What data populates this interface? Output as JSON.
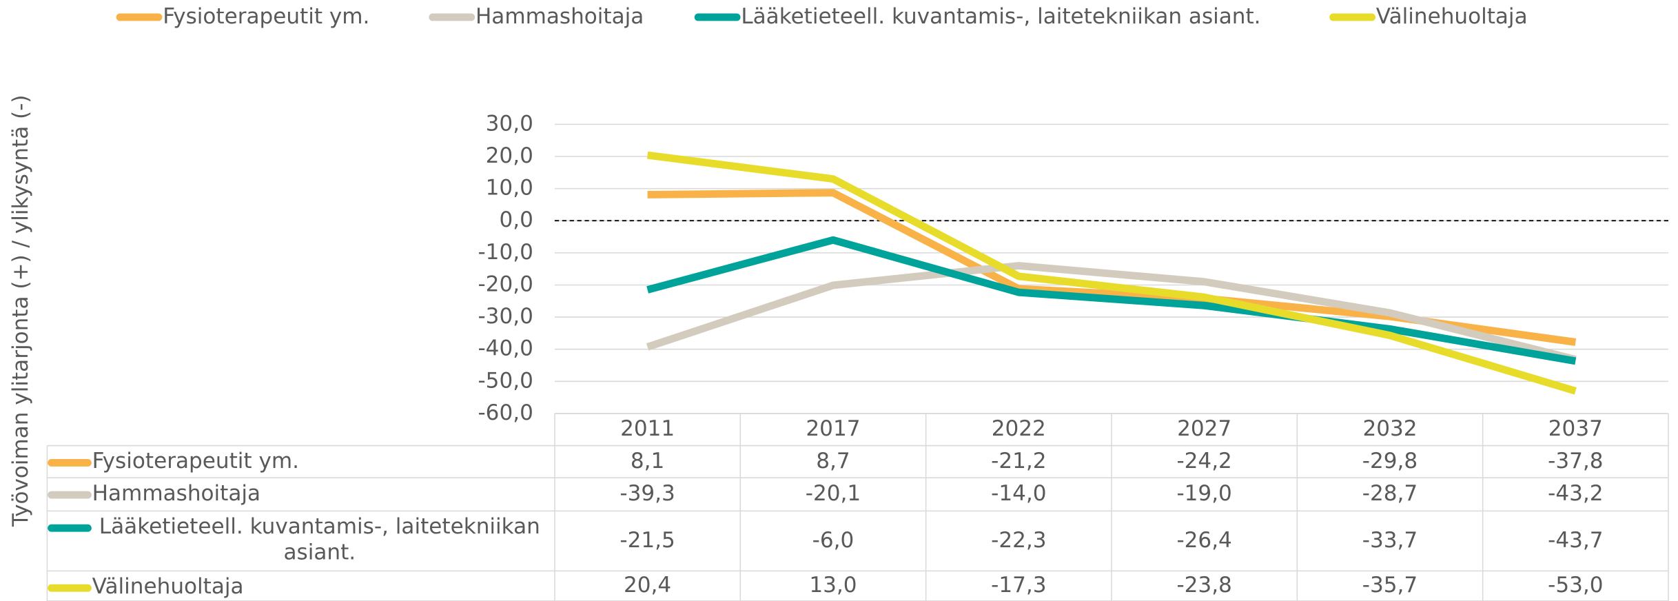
{
  "chart_data": {
    "type": "line",
    "y_label": "Työvoiman ylitarjonta (+) / ylikysyntä (-)",
    "categories": [
      "2011",
      "2017",
      "2022",
      "2027",
      "2032",
      "2037"
    ],
    "series": [
      {
        "name": "Fysioterapeutit ym.",
        "color": "#f9b248",
        "values": [
          8.1,
          8.7,
          -21.2,
          -24.2,
          -29.8,
          -37.8
        ],
        "value_labels": [
          "8,1",
          "8,7",
          "-21,2",
          "-24,2",
          "-29,8",
          "-37,8"
        ]
      },
      {
        "name": "Hammashoitaja",
        "color": "#d3cbbd",
        "values": [
          -39.3,
          -20.1,
          -14.0,
          -19.0,
          -28.7,
          -43.2
        ],
        "value_labels": [
          "-39,3",
          "-20,1",
          "-14,0",
          "-19,0",
          "-28,7",
          "-43,2"
        ]
      },
      {
        "name": "Lääketieteell. kuvantamis-, laitetekniikan asiant.",
        "color": "#00a39a",
        "values": [
          -21.5,
          -6.0,
          -22.3,
          -26.4,
          -33.7,
          -43.7
        ],
        "value_labels": [
          "-21,5",
          "-6,0",
          "-22,3",
          "-26,4",
          "-33,7",
          "-43,7"
        ]
      },
      {
        "name": "Välinehuoltaja",
        "color": "#e8dc2a",
        "values": [
          20.4,
          13.0,
          -17.3,
          -23.8,
          -35.7,
          -53.0
        ],
        "value_labels": [
          "20,4",
          "13,0",
          "-17,3",
          "-23,8",
          "-35,7",
          "-53,0"
        ]
      }
    ],
    "ylim": [
      -60,
      30
    ],
    "yticks": [
      {
        "value": -60,
        "label": "-60,0"
      },
      {
        "value": -50,
        "label": "-50,0"
      },
      {
        "value": -40,
        "label": "-40,0"
      },
      {
        "value": -30,
        "label": "-30,0"
      },
      {
        "value": -20,
        "label": "-20,0"
      },
      {
        "value": -10,
        "label": "-10,0"
      },
      {
        "value": 0,
        "label": "0,0"
      },
      {
        "value": 10,
        "label": "10,0"
      },
      {
        "value": 20,
        "label": "20,0"
      },
      {
        "value": 30,
        "label": "30,0"
      }
    ],
    "grid": true
  }
}
